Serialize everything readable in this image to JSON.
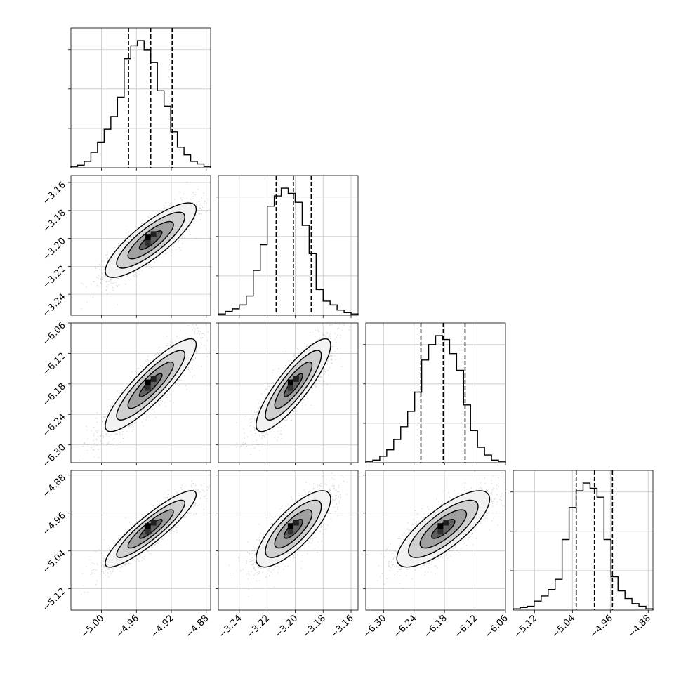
{
  "chart_data": {
    "type": "corner",
    "title": "",
    "parameters": [
      {
        "index": 0,
        "label": "",
        "range": [
          -5.035,
          -4.875
        ],
        "ticks": [
          -5.0,
          -4.96,
          -4.92,
          -4.88
        ],
        "tick_labels": [
          "−5.00",
          "−4.96",
          "−4.92",
          "−4.88"
        ],
        "quantiles": [
          -4.969,
          -4.9436,
          -4.919
        ],
        "median": -4.9436,
        "sigma": 0.0248,
        "histogram_counts": [
          1,
          2,
          5,
          12,
          20,
          30,
          40,
          55,
          85,
          95,
          99,
          92,
          82,
          60,
          48,
          28,
          16,
          10,
          5,
          3,
          1
        ]
      },
      {
        "index": 1,
        "label": "",
        "range": [
          -3.255,
          -3.155
        ],
        "ticks": [
          -3.24,
          -3.22,
          -3.2,
          -3.18,
          -3.16
        ],
        "tick_labels": [
          "−3.24",
          "−3.22",
          "−3.20",
          "−3.18",
          "−3.16"
        ],
        "quantiles": [
          -3.2136,
          -3.2013,
          -3.1885
        ],
        "median": -3.2013,
        "sigma": 0.0127,
        "histogram_counts": [
          1,
          3,
          5,
          8,
          15,
          35,
          55,
          85,
          93,
          99,
          95,
          88,
          70,
          48,
          20,
          11,
          8,
          4,
          2,
          1
        ]
      },
      {
        "index": 2,
        "label": "",
        "range": [
          -6.335,
          -6.06
        ],
        "ticks": [
          -6.3,
          -6.24,
          -6.18,
          -6.12,
          -6.06
        ],
        "tick_labels": [
          "−6.30",
          "−6.24",
          "−6.18",
          "−6.12",
          "−6.06"
        ],
        "quantiles": [
          -6.2265,
          -6.1825,
          -6.1395
        ],
        "median": -6.1825,
        "sigma": 0.0435,
        "histogram_counts": [
          1,
          2,
          5,
          10,
          18,
          28,
          40,
          55,
          80,
          92,
          99,
          96,
          85,
          72,
          45,
          25,
          12,
          6,
          2,
          1
        ]
      },
      {
        "index": 3,
        "label": "",
        "range": [
          -5.165,
          -4.87
        ],
        "ticks": [
          -5.12,
          -5.04,
          -4.96,
          -4.88
        ],
        "tick_labels": [
          "−5.12",
          "−5.04",
          "−4.96",
          "−4.88"
        ],
        "quantiles": [
          -5.032,
          -4.9935,
          -4.9555
        ],
        "median": -4.9935,
        "sigma": 0.0384,
        "histogram_counts": [
          1,
          2,
          3,
          7,
          11,
          16,
          24,
          55,
          80,
          93,
          99,
          95,
          88,
          55,
          26,
          15,
          9,
          5,
          3,
          1
        ]
      }
    ],
    "contour_levels_sigma": [
      0.5,
      1.0,
      1.5,
      2.0
    ],
    "pair_correlations": {
      "1_0": 0.83,
      "2_0": 0.88,
      "2_1": 0.86,
      "3_0": 0.9,
      "3_1": 0.78,
      "3_2": 0.78
    },
    "grid": true,
    "colors": {
      "points": "#7f7f7f",
      "contour": "#000000",
      "histogram": "#000000",
      "grid": "#c8c8c8"
    }
  }
}
